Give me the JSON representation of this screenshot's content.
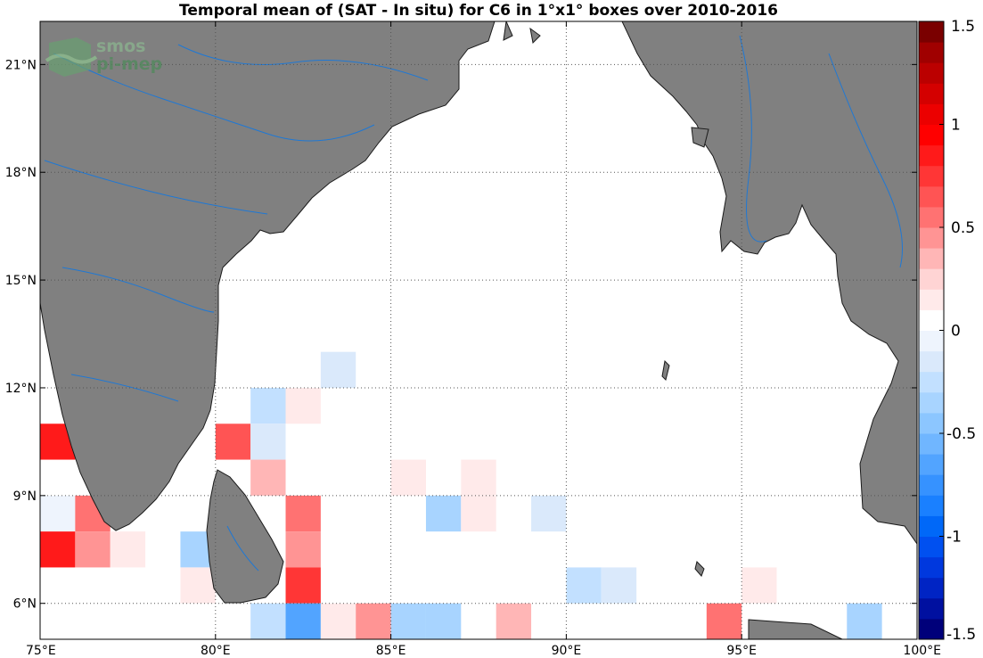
{
  "logo": {
    "line1": "smos",
    "line2": "pi-mep"
  },
  "chart_data": {
    "type": "heatmap",
    "title": "Temporal mean of (SAT - In situ) for C6 in 1°x1° boxes over 2010-2016",
    "xlim": [
      75,
      100
    ],
    "ylim": [
      5,
      22.2
    ],
    "x_ticks": [
      75,
      80,
      85,
      90,
      95,
      100
    ],
    "x_tick_labels": [
      "75°E",
      "80°E",
      "85°E",
      "90°E",
      "95°E",
      "100°E"
    ],
    "y_ticks": [
      6,
      9,
      12,
      15,
      18,
      21
    ],
    "y_tick_labels": [
      "6°N",
      "9°N",
      "12°N",
      "15°N",
      "18°N",
      "21°N"
    ],
    "grid": "dotted",
    "colorbar": {
      "range": [
        -1.5,
        1.5
      ],
      "levels": 30,
      "ticks": [
        -1.5,
        -1,
        -0.5,
        0,
        0.5,
        1,
        1.5
      ],
      "tick_labels": [
        "-1.5",
        "-1",
        "-0.5",
        "0",
        "0.5",
        "1",
        "1.5"
      ],
      "colors": [
        "#00007a",
        "#0010a0",
        "#0024c4",
        "#0038de",
        "#0050f0",
        "#0068f8",
        "#1a80ff",
        "#3692ff",
        "#52a4ff",
        "#70b6ff",
        "#8cc6ff",
        "#a8d4ff",
        "#c2e0ff",
        "#dae9fb",
        "#eef4fd",
        "#ffffff",
        "#ffeaea",
        "#ffd4d4",
        "#ffb6b6",
        "#ff9494",
        "#ff7272",
        "#ff5454",
        "#ff3636",
        "#ff1a1a",
        "#ff0000",
        "#ec0000",
        "#d40000",
        "#bb0000",
        "#a00000",
        "#7a0000"
      ]
    },
    "cells": [
      {
        "lon": 75.5,
        "lat": 10.5,
        "value": 0.85
      },
      {
        "lon": 75.5,
        "lat": 8.5,
        "value": -0.05
      },
      {
        "lon": 76.5,
        "lat": 8.5,
        "value": 0.55
      },
      {
        "lon": 75.5,
        "lat": 7.5,
        "value": 0.85
      },
      {
        "lon": 76.5,
        "lat": 7.5,
        "value": 0.45
      },
      {
        "lon": 77.5,
        "lat": 7.5,
        "value": 0.15
      },
      {
        "lon": 79.5,
        "lat": 7.5,
        "value": -0.4
      },
      {
        "lon": 79.5,
        "lat": 6.5,
        "value": 0.15
      },
      {
        "lon": 80.5,
        "lat": 10.5,
        "value": 0.65
      },
      {
        "lon": 81.5,
        "lat": 11.5,
        "value": -0.25
      },
      {
        "lon": 81.5,
        "lat": 10.5,
        "value": -0.1
      },
      {
        "lon": 81.5,
        "lat": 9.5,
        "value": 0.3
      },
      {
        "lon": 82.5,
        "lat": 11.5,
        "value": 0.15
      },
      {
        "lon": 83.5,
        "lat": 12.5,
        "value": -0.15
      },
      {
        "lon": 82.5,
        "lat": 8.5,
        "value": 0.55
      },
      {
        "lon": 82.5,
        "lat": 7.5,
        "value": 0.4
      },
      {
        "lon": 82.5,
        "lat": 6.5,
        "value": 0.7
      },
      {
        "lon": 81.5,
        "lat": 5.5,
        "value": -0.25
      },
      {
        "lon": 82.5,
        "lat": 5.5,
        "value": -0.65
      },
      {
        "lon": 83.5,
        "lat": 5.5,
        "value": 0.15
      },
      {
        "lon": 84.5,
        "lat": 5.5,
        "value": 0.45
      },
      {
        "lon": 85.5,
        "lat": 5.5,
        "value": -0.3
      },
      {
        "lon": 86.5,
        "lat": 5.5,
        "value": -0.4
      },
      {
        "lon": 88.5,
        "lat": 5.5,
        "value": 0.3
      },
      {
        "lon": 85.5,
        "lat": 9.5,
        "value": 0.15
      },
      {
        "lon": 87.5,
        "lat": 9.5,
        "value": 0.15
      },
      {
        "lon": 86.5,
        "lat": 8.5,
        "value": -0.3
      },
      {
        "lon": 87.5,
        "lat": 8.5,
        "value": 0.15
      },
      {
        "lon": 89.5,
        "lat": 8.5,
        "value": -0.1
      },
      {
        "lon": 90.5,
        "lat": 6.5,
        "value": -0.25
      },
      {
        "lon": 91.5,
        "lat": 6.5,
        "value": -0.15
      },
      {
        "lon": 94.5,
        "lat": 5.5,
        "value": 0.55
      },
      {
        "lon": 95.5,
        "lat": 6.5,
        "value": 0.15
      },
      {
        "lon": 98.5,
        "lat": 5.5,
        "value": -0.4
      }
    ]
  }
}
